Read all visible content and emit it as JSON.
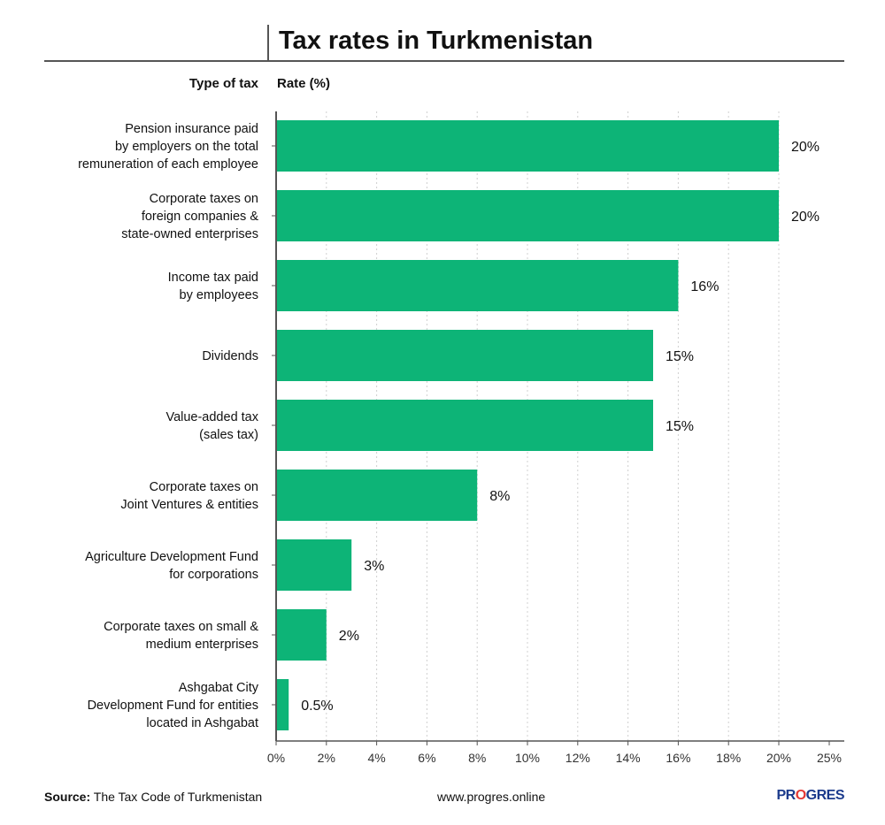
{
  "title": "Tax rates in Turkmenistan",
  "columns": {
    "type": "Type of tax",
    "rate": "Rate (%)"
  },
  "footer": {
    "source_label": "Source:",
    "source_text": " The Tax Code of Turkmenistan",
    "website": "www.progres.online",
    "brand_pre": "PR",
    "brand_o": "O",
    "brand_post": "GRES"
  },
  "colors": {
    "bar": "#0db477",
    "axis": "#555555",
    "grid": "#d0d0d0",
    "brand": "#1b3a8c",
    "brand_accent": "#e53935"
  },
  "chart_data": {
    "type": "bar",
    "orientation": "horizontal",
    "xlim": [
      0,
      25
    ],
    "ticks": [
      0,
      2,
      4,
      6,
      8,
      10,
      12,
      14,
      16,
      18,
      20,
      25
    ],
    "tick_labels": [
      "0%",
      "2%",
      "4%",
      "6%",
      "8%",
      "10%",
      "12%",
      "14%",
      "16%",
      "18%",
      "20%",
      "25%"
    ],
    "categories": [
      [
        "Pension insurance paid",
        "by employers on the total",
        "remuneration of each employee"
      ],
      [
        "Corporate taxes on",
        "foreign companies &",
        "state-owned enterprises"
      ],
      [
        "Income tax paid",
        "by employees"
      ],
      [
        "Dividends"
      ],
      [
        "Value-added tax",
        "(sales tax)"
      ],
      [
        "Corporate taxes on",
        "Joint Ventures & entities"
      ],
      [
        "Agriculture Development Fund",
        "for corporations"
      ],
      [
        "Corporate taxes on small &",
        "medium enterprises"
      ],
      [
        "Ashgabat City",
        "Development Fund for entities",
        "located in Ashgabat"
      ]
    ],
    "values": [
      20,
      20,
      16,
      15,
      15,
      8,
      3,
      2,
      0.5
    ],
    "value_labels": [
      "20%",
      "20%",
      "16%",
      "15%",
      "15%",
      "8%",
      "3%",
      "2%",
      "0.5%"
    ]
  }
}
